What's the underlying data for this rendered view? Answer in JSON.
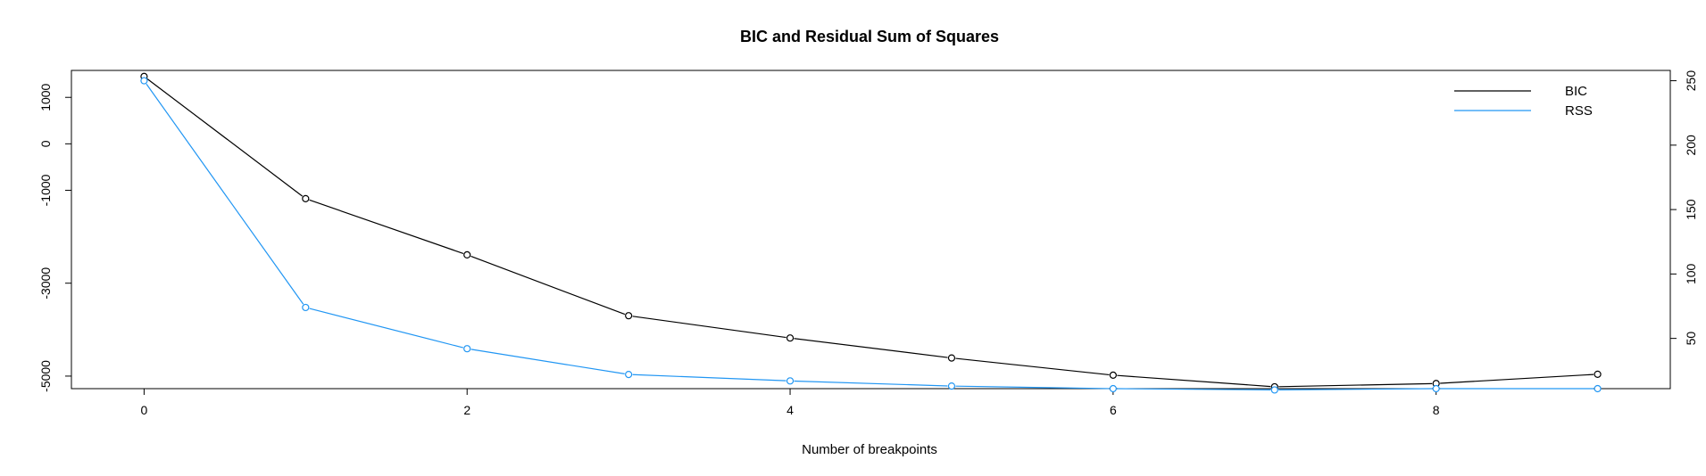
{
  "chart_data": {
    "type": "line",
    "title": "BIC and Residual Sum of Squares",
    "xlabel": "Number of breakpoints",
    "ylabel_left": "",
    "ylabel_right": "",
    "x": [
      0,
      1,
      2,
      3,
      4,
      5,
      6,
      7,
      8,
      9
    ],
    "xlim": [
      -0.45,
      9.45
    ],
    "x_ticks": [
      0,
      2,
      4,
      6,
      8
    ],
    "y_left_ticks": [
      -5000,
      -3000,
      -1000,
      0,
      1000
    ],
    "y_right_ticks": [
      50,
      100,
      150,
      200,
      250
    ],
    "ylim_left": [
      -5270,
      1580
    ],
    "ylim_right": [
      11,
      258
    ],
    "series": [
      {
        "name": "BIC",
        "axis": "left",
        "color": "#000000",
        "values": [
          1450,
          -1180,
          -2390,
          -3700,
          -4180,
          -4610,
          -4980,
          -5230,
          -5160,
          -4960
        ]
      },
      {
        "name": "RSS",
        "axis": "right",
        "color": "#2196f3",
        "values": [
          250,
          74,
          42,
          22,
          17,
          13,
          11,
          10,
          11,
          11
        ]
      }
    ],
    "legend_position": "top-right",
    "grid": false
  }
}
